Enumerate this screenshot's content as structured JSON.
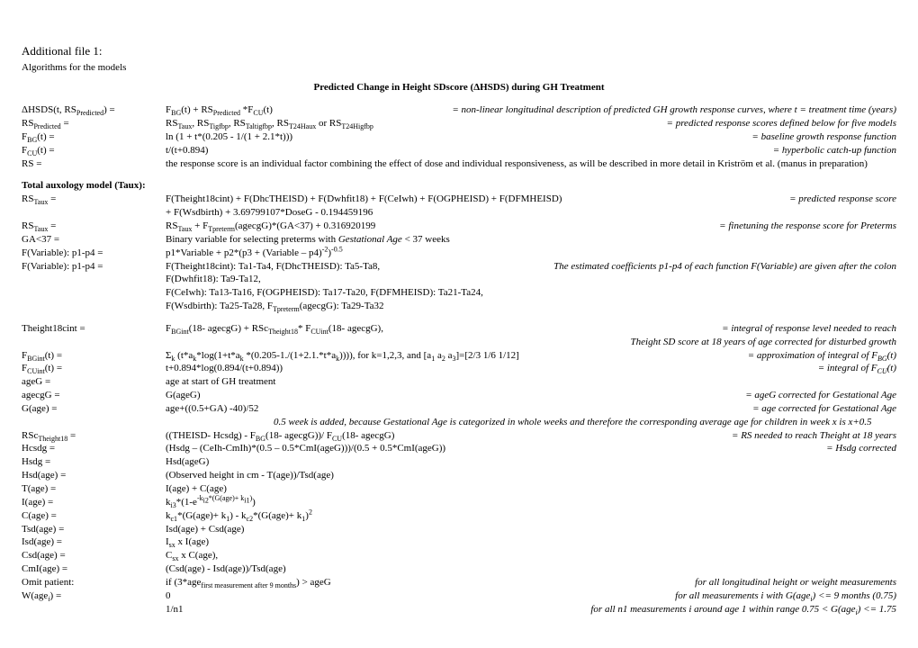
{
  "title": "Additional file 1:",
  "subtitle": "Algorithms for the models",
  "section_title": "Predicted Change in Height SDscore (ΔHSDS) during GH Treatment",
  "block1": [
    {
      "l": "ΔHSDS(t, RS<sub>Predicted</sub>) =",
      "m": "F<sub>BG</sub>(t) + RS<sub>Predicted</sub> *F<sub>CU</sub>(t)",
      "r": "= non-linear longitudinal description of predicted GH growth response curves, where t = treatment time (years)",
      "wide": true
    },
    {
      "l": "RS<sub>Predicted</sub> =",
      "m": "RS<sub>Taux</sub>, RS<sub>Tigfbp</sub>, RS<sub>Taltigfbp</sub>, RS<sub>T24Haux</sub> or RS<sub>T24Higfbp</sub>",
      "r": "= predicted response scores defined below for five models"
    },
    {
      "l": "F<sub>BG</sub>(t) =",
      "m": "ln (1 + t*(0.205 - 1/(1 + 2.1*t)))",
      "r": "= baseline growth response function"
    },
    {
      "l": "F<sub>CU</sub>(t) =",
      "m": "t/(t+0.894)",
      "r": "= hyperbolic catch-up function"
    }
  ],
  "rs_line": {
    "l": "RS =",
    "text": "the response score is an individual factor combining the effect of dose and individual responsiveness, as will be described in more detail in Kriström et al. (manus in preparation)"
  },
  "taux_header": "Total auxology model (Taux):",
  "block2": [
    {
      "l": "RS<sub>Taux</sub> =",
      "m": "F(Theight18cint) + F(DhcTHEISD) + F(Dwhfit18) + F(CeIwh) + F(OGPHEISD) + F(DFMHEISD) + F(Wsdbirth) + 3.69799107*DoseG - 0.194459196",
      "r": "=  predicted response score"
    },
    {
      "l": "RS<sub>Taux</sub> =",
      "m": "RS<sub>Taux</sub> + F<sub>Tpreterm</sub>(agecgG)*(GA<37) + 0.316920199",
      "r": "= finetuning the response score for Preterms"
    },
    {
      "l": "GA<37 =",
      "m": "Binary variable for selecting preterms with <span class='italic'>Gestational Age</span> < 37 weeks",
      "r": ""
    },
    {
      "l": "F(Variable): p1-p4 =",
      "m": "p1*Variable + p2*(p3 + (Variable – p4)<sup>-2</sup>)<sup>-0.5</sup>",
      "r": ""
    },
    {
      "l": "F(Variable): p1-p4 =",
      "m": "F(Theight18cint): Ta1-Ta4, F(DhcTHEISD): Ta5-Ta8, F(Dwhfit18): Ta9-Ta12,",
      "r": "The estimated coefficients p1-p4 of each function F(Variable) are given after the colon",
      "wide": true
    },
    {
      "l": "",
      "m": "F(CeIwh): Ta13-Ta16, F(OGPHEISD): Ta17-Ta20, F(DFMHEISD): Ta21-Ta24,",
      "r": ""
    },
    {
      "l": "",
      "m": "F(Wsdbirth): Ta25-Ta28, F<sub>Tpreterm</sub>(agecgG): Ta29-Ta32",
      "r": ""
    }
  ],
  "block3": [
    {
      "l": "Theight18cint =",
      "m": "F<sub>BGint</sub>(18- agecgG) + RSc<sub>Theight18</sub>* F<sub>CUint</sub>(18- agecgG),",
      "r": "= integral of response level needed to reach"
    },
    {
      "l": "",
      "m": "",
      "r": "Theight SD score at 18 years of age corrected for disturbed growth",
      "wide": true,
      "rightonly": true
    },
    {
      "l": "F<sub>BGint</sub>(t) =",
      "m": "Σ<sub>k</sub>  (t*a<sub>k</sub>*log(1+t*a<sub>k</sub> *(0.205-1./(1+2.1.*t*a<sub>k</sub>)))), for k=1,2,3, and [a<sub>1</sub> a<sub>2</sub> a<sub>3</sub>]=[2/3 1/6 1/12]",
      "r": "= approximation of integral of F<sub>BG</sub>(t)"
    },
    {
      "l": "F<sub>CUint</sub>(t) =",
      "m": "t+0.894*log(0.894/(t+0.894))",
      "r": "= integral of F<sub>CU</sub>(t)"
    },
    {
      "l": "ageG =",
      "m": "age at start of GH treatment",
      "r": ""
    },
    {
      "l": "agecgG =",
      "m": "G(ageG)",
      "r": "= ageG corrected for Gestational Age"
    },
    {
      "l": "G(age) =",
      "m": "age+((0.5+GA) -40)/52",
      "r": "= age corrected for Gestational Age"
    }
  ],
  "ga_note": "0.5 week is added, because Gestational Age is categorized in whole weeks and therefore the corresponding average age for children in week x is x+0.5",
  "block4": [
    {
      "l": "RSc<sub>Theight18</sub> =",
      "m": "((THEISD- Hcsdg) - F<sub>BG</sub>(18- agecgG))/ F<sub>CU</sub>(18- agecgG)",
      "r": "= RS needed to reach Theight at 18 years"
    },
    {
      "l": "Hcsdg =",
      "m": "(Hsdg – (CeIh-CmIh)*(0.5 – 0.5*CmI(ageG)))/(0.5 + 0.5*CmI(ageG))",
      "r": "= Hsdg corrected"
    },
    {
      "l": "Hsdg =",
      "m": "Hsd(ageG)",
      "r": ""
    },
    {
      "l": "Hsd(age) =",
      "m": "(Observed height in cm - T(age))/Tsd(age)",
      "r": ""
    },
    {
      "l": "T(age) =",
      "m": "I(age)  +  C(age)",
      "r": ""
    },
    {
      "l": "I(age) =",
      "m": "k<sub>i3</sub>*(1-e<sup>-k<sub>i2</sub>*(G(age)+ k<sub>i1</sub>)</sup>)",
      "r": ""
    },
    {
      "l": "C(age) =",
      "m": "k<sub>c1</sub>*(G(age)+ k<sub>1</sub>) - k<sub>c2</sub>*(G(age)+ k<sub>1</sub>)<sup>2</sup>",
      "r": ""
    },
    {
      "l": "Tsd(age) =",
      "m": "Isd(age)  +  Csd(age)",
      "r": ""
    },
    {
      "l": "Isd(age) =",
      "m": "I<sub>sx</sub> x I(age)",
      "r": ""
    },
    {
      "l": "Csd(age) =",
      "m": "C<sub>sx</sub> x C(age),",
      "r": ""
    },
    {
      "l": "CmI(age) =",
      "m": "(Csd(age) - Isd(age))/Tsd(age)",
      "r": ""
    },
    {
      "l": "Omit patient:",
      "m": "if (3*age<sub>first measurement after 9 months</sub>) > ageG",
      "r": "for all longitudinal height or weight measurements"
    },
    {
      "l": "W(age<span class='italic'><sub>i</sub></span>) =",
      "m": "0",
      "r": "for all measurements i with G(age<sub>i</sub>) <= 9 months (0.75)"
    },
    {
      "l": "",
      "m": "1/n1",
      "r": "for all n1 measurements i around age 1 within range 0.75 < G(age<sub>i</sub>) <= 1.75"
    }
  ]
}
